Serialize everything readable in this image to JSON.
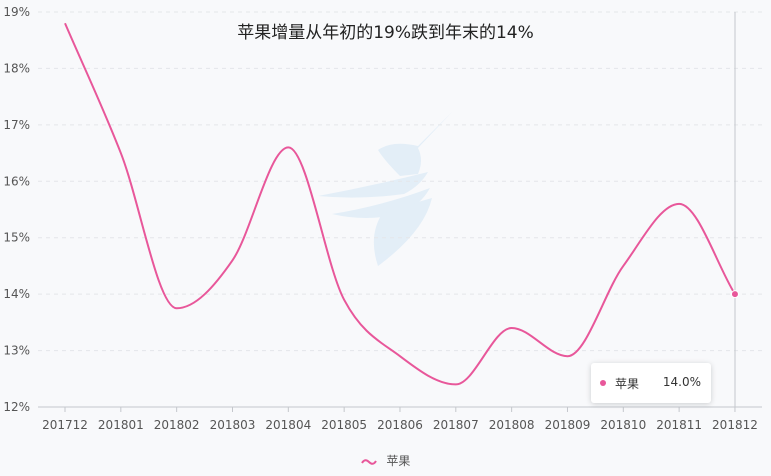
{
  "chart_data": {
    "type": "line",
    "title": "苹果增量从年初的19%跌到年末的14%",
    "categories": [
      "201712",
      "201801",
      "201802",
      "201803",
      "201804",
      "201805",
      "201806",
      "201807",
      "201808",
      "201809",
      "201810",
      "201811",
      "201812"
    ],
    "series": [
      {
        "name": "苹果",
        "values": [
          18.8,
          16.5,
          13.75,
          14.6,
          16.6,
          13.9,
          12.9,
          12.4,
          13.4,
          12.9,
          14.5,
          15.6,
          14.0
        ]
      }
    ],
    "ylim": [
      12,
      19
    ],
    "yticks": [
      "12%",
      "13%",
      "14%",
      "15%",
      "16%",
      "17%",
      "18%",
      "19%"
    ],
    "grid": true,
    "legend_position": "bottom",
    "line_color": "#e8579a"
  },
  "tooltip": {
    "name": "苹果",
    "value": "14.0%"
  }
}
